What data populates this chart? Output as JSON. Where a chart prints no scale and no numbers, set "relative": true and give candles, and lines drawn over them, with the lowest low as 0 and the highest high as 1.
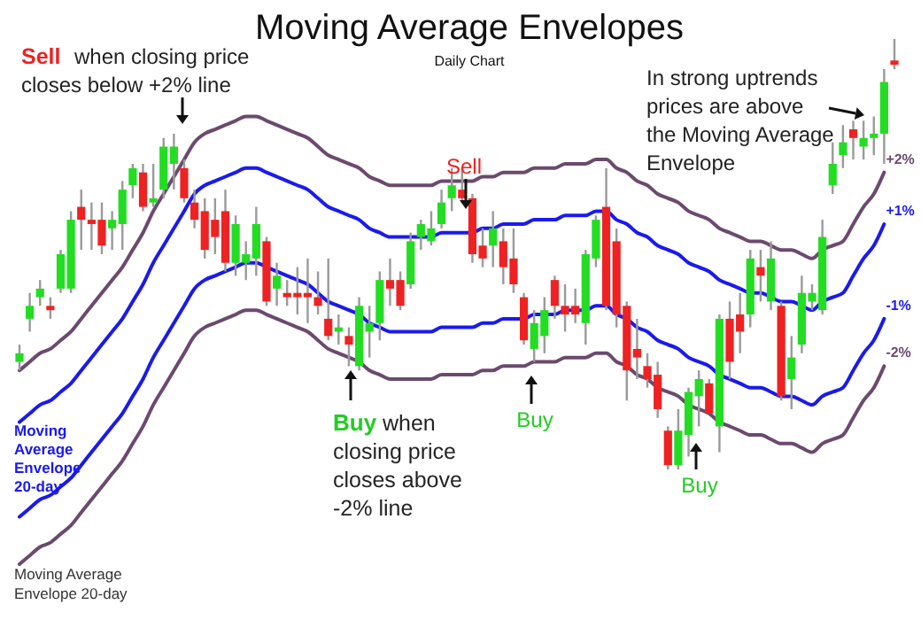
{
  "chart_data": {
    "type": "candlestick",
    "title": "Moving Average Envelopes",
    "subtitle": "Daily Chart",
    "relative": true,
    "categories": [
      null,
      null,
      null,
      null,
      null,
      null,
      null,
      null,
      null,
      null,
      null,
      null,
      null,
      null,
      null,
      null,
      null,
      null,
      null,
      null,
      null,
      null,
      null,
      null,
      null,
      null,
      null,
      null,
      null,
      null,
      null,
      null,
      null,
      null,
      null,
      null,
      null,
      null,
      null,
      null,
      null,
      null,
      null,
      null,
      null,
      null,
      null,
      null,
      null,
      null,
      null,
      null,
      null,
      null,
      null,
      null,
      null,
      null,
      null,
      null,
      null,
      null,
      null,
      null,
      null,
      null,
      null,
      null,
      null,
      null,
      null,
      null,
      null,
      null,
      null,
      null,
      null,
      null,
      null,
      null,
      null,
      null,
      null,
      null,
      null,
      null
    ],
    "series": [
      {
        "ohlc": [
          [
            0.25,
            0.29,
            0.23,
            0.27
          ],
          [
            0.35,
            0.41,
            0.32,
            0.38
          ],
          [
            0.4,
            0.44,
            0.38,
            0.42
          ],
          [
            0.38,
            0.4,
            0.35,
            0.37
          ],
          [
            0.42,
            0.51,
            0.41,
            0.5
          ],
          [
            0.42,
            0.6,
            0.41,
            0.58
          ],
          [
            0.61,
            0.65,
            0.51,
            0.58
          ],
          [
            0.58,
            0.62,
            0.51,
            0.57
          ],
          [
            0.58,
            0.62,
            0.5,
            0.52
          ],
          [
            0.56,
            0.6,
            0.51,
            0.58
          ],
          [
            0.57,
            0.67,
            0.51,
            0.65
          ],
          [
            0.66,
            0.71,
            0.63,
            0.7
          ],
          [
            0.69,
            0.71,
            0.6,
            0.61
          ],
          [
            0.62,
            0.71,
            0.61,
            0.63
          ],
          [
            0.65,
            0.77,
            0.63,
            0.75
          ],
          [
            0.71,
            0.78,
            0.65,
            0.75
          ],
          [
            0.7,
            0.72,
            0.62,
            0.63
          ],
          [
            0.62,
            0.65,
            0.56,
            0.58
          ],
          [
            0.6,
            0.63,
            0.49,
            0.51
          ],
          [
            0.58,
            0.63,
            0.5,
            0.54
          ],
          [
            0.6,
            0.65,
            0.46,
            0.48
          ],
          [
            0.48,
            0.59,
            0.45,
            0.57
          ],
          [
            0.48,
            0.53,
            0.44,
            0.5
          ],
          [
            0.49,
            0.61,
            0.45,
            0.57
          ],
          [
            0.53,
            0.54,
            0.38,
            0.39
          ],
          [
            0.42,
            0.48,
            0.38,
            0.45
          ],
          [
            0.41,
            0.44,
            0.38,
            0.4
          ],
          [
            0.41,
            0.47,
            0.36,
            0.4
          ],
          [
            0.41,
            0.49,
            0.34,
            0.4
          ],
          [
            0.4,
            0.46,
            0.36,
            0.38
          ],
          [
            0.35,
            0.49,
            0.3,
            0.31
          ],
          [
            0.32,
            0.36,
            0.29,
            0.33
          ],
          [
            0.31,
            0.33,
            0.24,
            0.29
          ],
          [
            0.24,
            0.4,
            0.23,
            0.38
          ],
          [
            0.32,
            0.38,
            0.26,
            0.34
          ],
          [
            0.34,
            0.46,
            0.3,
            0.44
          ],
          [
            0.44,
            0.49,
            0.38,
            0.42
          ],
          [
            0.44,
            0.46,
            0.37,
            0.38
          ],
          [
            0.43,
            0.55,
            0.42,
            0.53
          ],
          [
            0.54,
            0.58,
            0.51,
            0.57
          ],
          [
            0.53,
            0.6,
            0.52,
            0.56
          ],
          [
            0.57,
            0.65,
            0.56,
            0.62
          ],
          [
            0.63,
            0.7,
            0.6,
            0.66
          ],
          [
            0.65,
            0.7,
            0.62,
            0.63
          ],
          [
            0.63,
            0.64,
            0.48,
            0.5
          ],
          [
            0.52,
            0.56,
            0.47,
            0.49
          ],
          [
            0.52,
            0.6,
            0.47,
            0.56
          ],
          [
            0.53,
            0.56,
            0.43,
            0.47
          ],
          [
            0.49,
            0.56,
            0.41,
            0.43
          ],
          [
            0.4,
            0.41,
            0.29,
            0.3
          ],
          [
            0.28,
            0.37,
            0.25,
            0.34
          ],
          [
            0.31,
            0.4,
            0.27,
            0.37
          ],
          [
            0.44,
            0.45,
            0.35,
            0.38
          ],
          [
            0.38,
            0.43,
            0.32,
            0.36
          ],
          [
            0.38,
            0.42,
            0.34,
            0.36
          ],
          [
            0.34,
            0.51,
            0.29,
            0.5
          ],
          [
            0.49,
            0.59,
            0.47,
            0.58
          ],
          [
            0.61,
            0.7,
            0.37,
            0.38
          ],
          [
            0.53,
            0.56,
            0.33,
            0.36
          ],
          [
            0.38,
            0.39,
            0.16,
            0.23
          ],
          [
            0.28,
            0.35,
            0.21,
            0.26
          ],
          [
            0.24,
            0.27,
            0.19,
            0.21
          ],
          [
            0.22,
            0.25,
            0.12,
            0.14
          ],
          [
            0.09,
            0.1,
            0,
            0.01
          ],
          [
            0.01,
            0.14,
            0,
            0.09
          ],
          [
            0.08,
            0.19,
            0.03,
            0.18
          ],
          [
            0.17,
            0.23,
            0.1,
            0.21
          ],
          [
            0.2,
            0.21,
            0.13,
            0.13
          ],
          [
            0.1,
            0.36,
            0.04,
            0.35
          ],
          [
            0.35,
            0.39,
            0.21,
            0.25
          ],
          [
            0.36,
            0.41,
            0.27,
            0.32
          ],
          [
            0.36,
            0.51,
            0.33,
            0.49
          ],
          [
            0.47,
            0.51,
            0.39,
            0.45
          ],
          [
            0.39,
            0.53,
            0.37,
            0.49
          ],
          [
            0.38,
            0.39,
            0.16,
            0.17
          ],
          [
            0.21,
            0.31,
            0.14,
            0.26
          ],
          [
            0.29,
            0.45,
            0.27,
            0.41
          ],
          [
            0.39,
            0.43,
            0.37,
            0.41
          ],
          [
            0.37,
            0.58,
            0.36,
            0.54
          ],
          [
            0.66,
            0.76,
            0.64,
            0.71
          ],
          [
            0.73,
            0.8,
            0.7,
            0.76
          ],
          [
            0.79,
            0.81,
            0.72,
            0.77
          ],
          [
            0.75,
            0.81,
            0.72,
            0.77
          ],
          [
            0.77,
            0.82,
            0.73,
            0.78
          ],
          [
            0.78,
            0.93,
            0.71,
            0.9
          ],
          [
            0.95,
            1,
            0.93,
            0.94
          ]
        ],
        "colors": [
          "#22dd22",
          "#22dd22",
          "#22dd22",
          "#ee2222",
          "#22dd22",
          "#22dd22",
          "#ee2222",
          "#ee2222",
          "#ee2222",
          "#22dd22",
          "#22dd22",
          "#22dd22",
          "#ee2222",
          "#22dd22",
          "#22dd22",
          "#22dd22",
          "#ee2222",
          "#ee2222",
          "#ee2222",
          "#ee2222",
          "#ee2222",
          "#22dd22",
          "#22dd22",
          "#22dd22",
          "#ee2222",
          "#22dd22",
          "#ee2222",
          "#ee2222",
          "#ee2222",
          "#ee2222",
          "#ee2222",
          "#22dd22",
          "#ee2222",
          "#22dd22",
          "#22dd22",
          "#22dd22",
          "#ee2222",
          "#ee2222",
          "#22dd22",
          "#22dd22",
          "#22dd22",
          "#22dd22",
          "#22dd22",
          "#ee2222",
          "#ee2222",
          "#ee2222",
          "#22dd22",
          "#ee2222",
          "#ee2222",
          "#ee2222",
          "#22dd22",
          "#22dd22",
          "#ee2222",
          "#ee2222",
          "#ee2222",
          "#22dd22",
          "#22dd22",
          "#ee2222",
          "#ee2222",
          "#ee2222",
          "#ee2222",
          "#ee2222",
          "#ee2222",
          "#ee2222",
          "#22dd22",
          "#22dd22",
          "#22dd22",
          "#ee2222",
          "#22dd22",
          "#ee2222",
          "#ee2222",
          "#22dd22",
          "#ee2222",
          "#22dd22",
          "#ee2222",
          "#22dd22",
          "#22dd22",
          "#22dd22",
          "#22dd22",
          "#22dd22",
          "#22dd22",
          "#ee2222",
          "#22dd22",
          "#22dd22",
          "#22dd22",
          "#ee2222"
        ]
      },
      {
        "type": "line",
        "name": "+2%",
        "color": "#6b4a6e",
        "values": [
          0.23,
          0.25,
          0.27,
          0.28,
          0.3,
          0.32,
          0.35,
          0.38,
          0.41,
          0.44,
          0.47,
          0.51,
          0.55,
          0.6,
          0.64,
          0.68,
          0.72,
          0.76,
          0.78,
          0.79,
          0.8,
          0.81,
          0.82,
          0.82,
          0.81,
          0.8,
          0.79,
          0.78,
          0.77,
          0.75,
          0.73,
          0.72,
          0.71,
          0.7,
          0.68,
          0.67,
          0.66,
          0.66,
          0.66,
          0.66,
          0.66,
          0.67,
          0.67,
          0.67,
          0.67,
          0.68,
          0.68,
          0.69,
          0.69,
          0.69,
          0.7,
          0.7,
          0.7,
          0.71,
          0.71,
          0.71,
          0.72,
          0.72,
          0.7,
          0.69,
          0.67,
          0.66,
          0.64,
          0.63,
          0.62,
          0.6,
          0.59,
          0.58,
          0.56,
          0.55,
          0.54,
          0.53,
          0.53,
          0.52,
          0.51,
          0.51,
          0.5,
          0.49,
          0.51,
          0.52,
          0.53,
          0.57,
          0.61,
          0.64,
          0.69,
          null
        ]
      },
      {
        "type": "line",
        "name": "+1%",
        "color": "#1a1aee",
        "values": [
          0.11,
          0.13,
          0.15,
          0.16,
          0.18,
          0.2,
          0.23,
          0.26,
          0.29,
          0.32,
          0.35,
          0.39,
          0.43,
          0.48,
          0.52,
          0.56,
          0.6,
          0.64,
          0.66,
          0.67,
          0.68,
          0.69,
          0.7,
          0.7,
          0.69,
          0.68,
          0.67,
          0.66,
          0.65,
          0.63,
          0.61,
          0.6,
          0.59,
          0.58,
          0.56,
          0.55,
          0.54,
          0.54,
          0.54,
          0.54,
          0.54,
          0.55,
          0.55,
          0.55,
          0.55,
          0.56,
          0.56,
          0.57,
          0.57,
          0.57,
          0.58,
          0.58,
          0.58,
          0.59,
          0.59,
          0.59,
          0.6,
          0.6,
          0.58,
          0.57,
          0.55,
          0.54,
          0.52,
          0.51,
          0.5,
          0.48,
          0.47,
          0.46,
          0.44,
          0.43,
          0.42,
          0.41,
          0.41,
          0.4,
          0.39,
          0.39,
          0.38,
          0.37,
          0.39,
          0.4,
          0.41,
          0.45,
          0.49,
          0.52,
          0.57,
          null
        ]
      },
      {
        "type": "line",
        "name": "-1%",
        "color": "#1a1aee",
        "values": [
          -0.11,
          -0.09,
          -0.07,
          -0.06,
          -0.04,
          -0.02,
          0.01,
          0.04,
          0.07,
          0.1,
          0.13,
          0.17,
          0.21,
          0.26,
          0.3,
          0.34,
          0.38,
          0.42,
          0.44,
          0.45,
          0.46,
          0.47,
          0.48,
          0.48,
          0.47,
          0.46,
          0.45,
          0.44,
          0.43,
          0.41,
          0.39,
          0.38,
          0.37,
          0.36,
          0.34,
          0.33,
          0.32,
          0.32,
          0.32,
          0.32,
          0.32,
          0.33,
          0.33,
          0.33,
          0.33,
          0.34,
          0.34,
          0.35,
          0.35,
          0.35,
          0.36,
          0.36,
          0.36,
          0.37,
          0.37,
          0.37,
          0.38,
          0.38,
          0.36,
          0.35,
          0.33,
          0.32,
          0.3,
          0.29,
          0.28,
          0.26,
          0.25,
          0.24,
          0.22,
          0.21,
          0.2,
          0.19,
          0.19,
          0.18,
          0.17,
          0.17,
          0.16,
          0.15,
          0.17,
          0.18,
          0.19,
          0.23,
          0.27,
          0.3,
          0.35,
          null
        ]
      },
      {
        "type": "line",
        "name": "-2%",
        "color": "#6b4a6e",
        "values": [
          -0.22,
          -0.2,
          -0.18,
          -0.17,
          -0.15,
          -0.13,
          -0.1,
          -0.07,
          -0.04,
          -0.01,
          0.02,
          0.06,
          0.1,
          0.15,
          0.19,
          0.23,
          0.27,
          0.31,
          0.33,
          0.34,
          0.35,
          0.36,
          0.37,
          0.37,
          0.36,
          0.35,
          0.34,
          0.33,
          0.32,
          0.3,
          0.28,
          0.27,
          0.26,
          0.25,
          0.23,
          0.22,
          0.21,
          0.21,
          0.21,
          0.21,
          0.21,
          0.22,
          0.22,
          0.22,
          0.22,
          0.23,
          0.23,
          0.24,
          0.24,
          0.24,
          0.25,
          0.25,
          0.25,
          0.26,
          0.26,
          0.26,
          0.27,
          0.27,
          0.25,
          0.24,
          0.22,
          0.21,
          0.19,
          0.18,
          0.17,
          0.15,
          0.14,
          0.13,
          0.11,
          0.1,
          0.09,
          0.08,
          0.08,
          0.07,
          0.06,
          0.06,
          0.05,
          0.04,
          0.06,
          0.07,
          0.08,
          0.12,
          0.16,
          0.19,
          0.24,
          null
        ]
      }
    ],
    "annotations": [
      "Sell",
      "when closing price\ncloses below +2% line",
      "Sell",
      "Buy",
      "when\nclosing price\ncloses above\n-2% line",
      "Buy",
      "Buy",
      "In strong uptrends\nprices are above\nthe Moving Average\nEnvelope",
      "Moving\nAverage\nEnvelope\n20-day",
      "Moving Average\nEnvelope 20-day"
    ]
  }
}
